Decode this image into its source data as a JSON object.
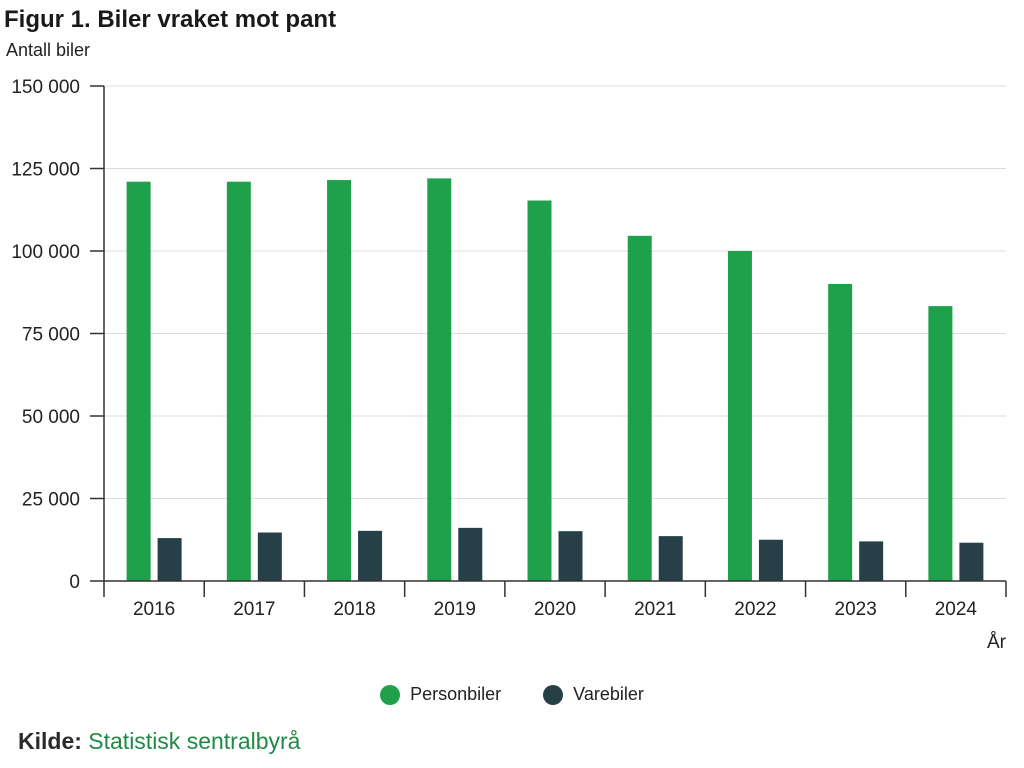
{
  "chart_data": {
    "type": "bar",
    "title": "Figur 1. Biler vraket mot pant",
    "ylabel": "Antall biler",
    "xlabel": "År",
    "categories": [
      "2016",
      "2017",
      "2018",
      "2019",
      "2020",
      "2021",
      "2022",
      "2023",
      "2024"
    ],
    "series": [
      {
        "name": "Personbiler",
        "color": "#1fa04a",
        "values": [
          121000,
          121000,
          121500,
          122000,
          115300,
          104600,
          100000,
          90000,
          83300
        ]
      },
      {
        "name": "Varebiler",
        "color": "#274048",
        "values": [
          13000,
          14700,
          15200,
          16100,
          15100,
          13600,
          12500,
          12000,
          11600
        ]
      }
    ],
    "ylim": [
      0,
      150000
    ],
    "yticks": [
      0,
      25000,
      50000,
      75000,
      100000,
      125000,
      150000
    ],
    "ytick_labels": [
      "0",
      "25 000",
      "50 000",
      "75 000",
      "100 000",
      "125 000",
      "150 000"
    ],
    "grid": true,
    "legend_position": "bottom-center"
  },
  "source": {
    "label": "Kilde:",
    "value": "Statistisk sentralbyrå"
  }
}
